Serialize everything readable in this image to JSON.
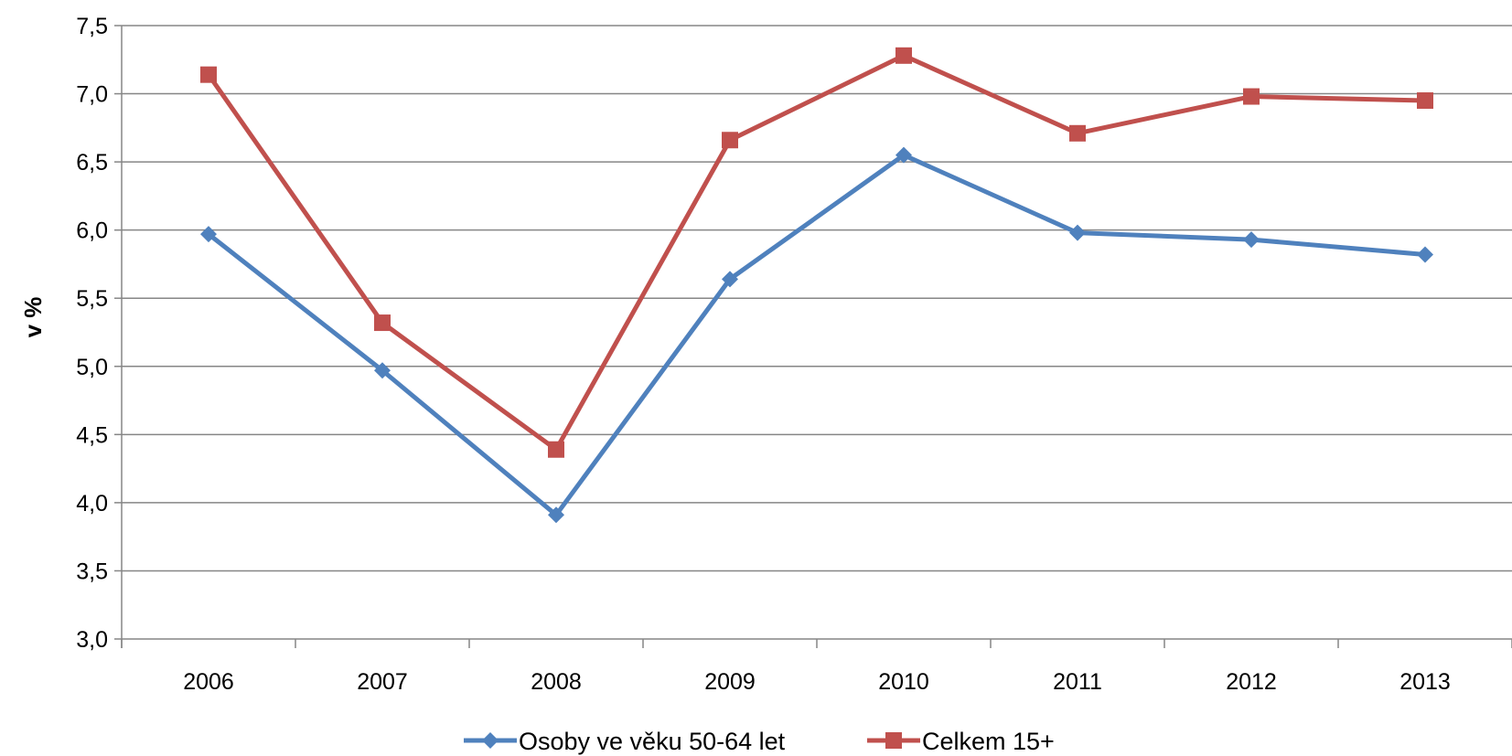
{
  "chart_data": {
    "type": "line",
    "title": "",
    "xlabel": "",
    "ylabel": "v %",
    "ylim": [
      3.0,
      7.5
    ],
    "yticks": [
      "3,0",
      "3,5",
      "4,0",
      "4,5",
      "5,0",
      "5,5",
      "6,0",
      "6,5",
      "7,0",
      "7,5"
    ],
    "categories": [
      "2006",
      "2007",
      "2008",
      "2009",
      "2010",
      "2011",
      "2012",
      "2013"
    ],
    "grid": "horizontal",
    "legend_position": "bottom",
    "series": [
      {
        "name": "Osoby ve věku 50-64 let",
        "color": "#4F81BD",
        "marker": "diamond",
        "values": [
          5.97,
          4.97,
          3.91,
          5.64,
          6.55,
          5.98,
          5.93,
          5.82
        ]
      },
      {
        "name": "Celkem 15+",
        "color": "#C0504D",
        "marker": "square",
        "values": [
          7.14,
          5.32,
          4.39,
          6.66,
          7.28,
          6.71,
          6.98,
          6.95
        ]
      }
    ]
  }
}
